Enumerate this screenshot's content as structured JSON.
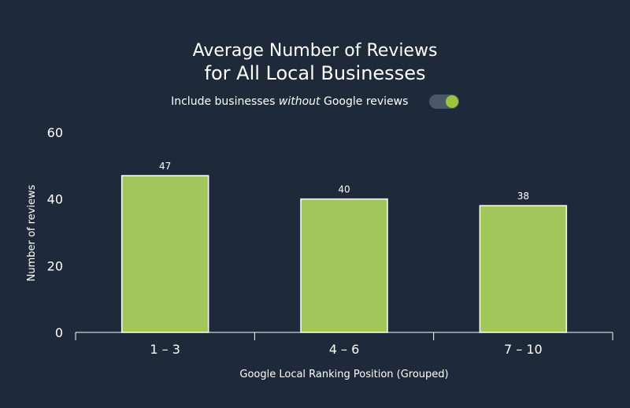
{
  "colors": {
    "background": "#1e2a3a",
    "bar": "#a2c65a",
    "bar_border": "#ffffff",
    "toggle_on": "#9bc53d"
  },
  "title": {
    "line1": "Average Number of Reviews",
    "line2": "for All Local Businesses"
  },
  "toggle": {
    "label_before": "Include businesses ",
    "label_em": "without",
    "label_after": " Google reviews",
    "state": "on"
  },
  "chart_data": {
    "type": "bar",
    "categories": [
      "1 – 3",
      "4 – 6",
      "7 – 10"
    ],
    "values": [
      47,
      40,
      38
    ],
    "data_labels": [
      "47",
      "40",
      "38"
    ],
    "xlabel": "Google Local Ranking Position (Grouped)",
    "ylabel": "Number of reviews",
    "ylim": [
      0,
      60
    ],
    "yticks": [
      "0",
      "20",
      "40",
      "60"
    ],
    "grid": false,
    "legend": "none"
  }
}
